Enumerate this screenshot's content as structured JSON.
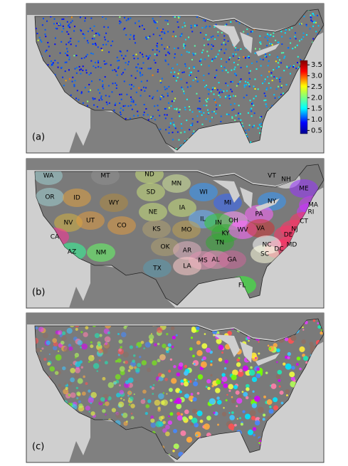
{
  "panels": [
    {
      "label": "(a)",
      "colorbar": {
        "lim": [
          0.35,
          3.7
        ],
        "ticks": [
          {
            "value": 0.5,
            "label": "0.5"
          },
          {
            "value": 1.0,
            "label": "1.0"
          },
          {
            "value": 1.5,
            "label": "1.5"
          },
          {
            "value": 2.0,
            "label": "2.0"
          },
          {
            "value": 2.5,
            "label": "2.5"
          },
          {
            "value": 3.0,
            "label": "3.0"
          },
          {
            "value": 3.5,
            "label": "3.5"
          }
        ]
      }
    },
    {
      "label": "(b)",
      "states": [
        "WA",
        "MT",
        "ND",
        "MN",
        "VT",
        "NH",
        "ME",
        "OR",
        "ID",
        "SD",
        "WI",
        "NY",
        "MA",
        "WY",
        "IA",
        "MI",
        "RI",
        "NV",
        "UT",
        "NE",
        "IL",
        "OH",
        "PA",
        "CT",
        "CO",
        "KS",
        "IN",
        "CA",
        "MO",
        "KY",
        "WV",
        "VA",
        "DE",
        "NJ",
        "MD",
        "DC",
        "OK",
        "TN",
        "NC",
        "AZ",
        "NM",
        "AR",
        "SC",
        "MS",
        "AL",
        "GA",
        "TX",
        "LA",
        "FL"
      ]
    },
    {
      "label": "(c)"
    }
  ]
}
